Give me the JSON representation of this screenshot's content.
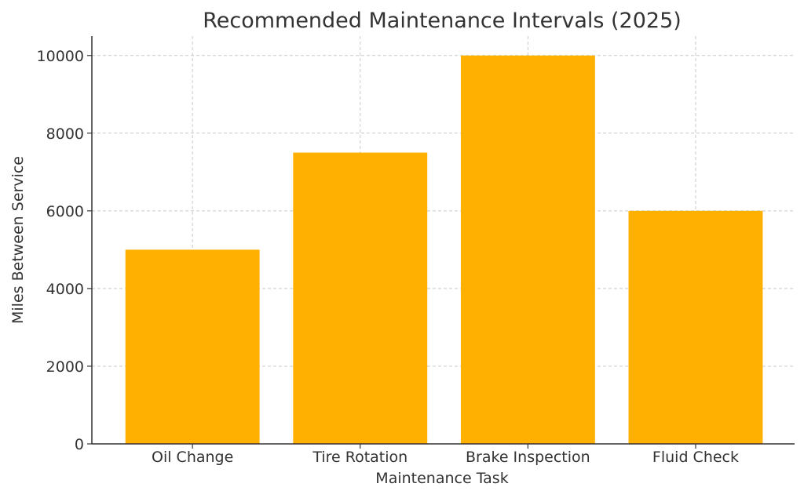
{
  "chart_data": {
    "type": "bar",
    "title": "Recommended Maintenance Intervals (2025)",
    "xlabel": "Maintenance Task",
    "ylabel": "Miles Between Service",
    "categories": [
      "Oil Change",
      "Tire Rotation",
      "Brake Inspection",
      "Fluid Check"
    ],
    "values": [
      5000,
      7500,
      10000,
      6000
    ],
    "ylim": [
      0,
      10500
    ],
    "yticks": [
      0,
      2000,
      4000,
      6000,
      8000,
      10000
    ],
    "grid": true,
    "bar_color": "#FFB000",
    "text_color": "#333333",
    "grid_color": "#c8c8c8"
  }
}
